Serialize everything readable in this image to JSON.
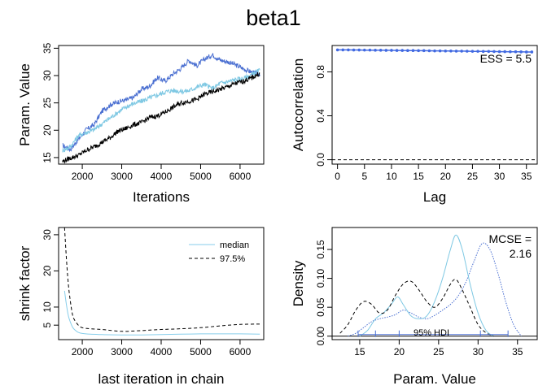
{
  "title": "beta1",
  "colors": {
    "chain1": "#4a6fd1",
    "chain2": "#7ec8e3",
    "chain3": "#000000",
    "median": "#87ceeb",
    "q975": "#000000",
    "acf": "#4169e1"
  },
  "chart_data": [
    {
      "id": "trace",
      "type": "line",
      "xlabel": "Iterations",
      "ylabel": "Param. Value",
      "xlim": [
        1400,
        6600
      ],
      "ylim": [
        13.8,
        35.5
      ],
      "xticks": [
        2000,
        3000,
        4000,
        5000,
        6000
      ],
      "yticks": [
        15,
        20,
        25,
        30,
        35
      ],
      "series": [
        {
          "x": [
            1500,
            1700,
            1900,
            2100,
            2300,
            2500,
            2700,
            2900,
            3100,
            3300,
            3500,
            3700,
            3900,
            4100,
            4300,
            4500,
            4700,
            4900,
            5100,
            5300,
            5500,
            5700,
            5900,
            6100,
            6300,
            6500
          ],
          "values": [
            17.2,
            16.5,
            18.3,
            20.1,
            21.0,
            23.5,
            24.6,
            25.2,
            25.5,
            26.0,
            27.5,
            28.0,
            29.6,
            29.0,
            30.3,
            31.3,
            32.8,
            31.8,
            33.0,
            33.8,
            32.8,
            32.5,
            31.9,
            31.2,
            30.6,
            30.2
          ]
        },
        {
          "x": [
            1500,
            1700,
            1900,
            2100,
            2300,
            2500,
            2700,
            2900,
            3100,
            3300,
            3500,
            3700,
            3900,
            4100,
            4300,
            4500,
            4700,
            4900,
            5100,
            5300,
            5500,
            5700,
            5900,
            6100,
            6300,
            6500
          ],
          "values": [
            16.3,
            17.0,
            19.0,
            19.6,
            20.1,
            21.2,
            22.2,
            23.3,
            24.2,
            24.9,
            25.3,
            25.9,
            26.4,
            27.0,
            27.3,
            27.1,
            27.2,
            27.9,
            28.4,
            27.6,
            28.6,
            28.9,
            29.3,
            29.5,
            30.2,
            31.0
          ]
        },
        {
          "x": [
            1500,
            1700,
            1900,
            2100,
            2300,
            2500,
            2700,
            2900,
            3100,
            3300,
            3500,
            3700,
            3900,
            4100,
            4300,
            4500,
            4700,
            4900,
            5100,
            5300,
            5500,
            5700,
            5900,
            6100,
            6300,
            6500
          ],
          "values": [
            14.3,
            14.9,
            15.4,
            16.3,
            17.0,
            17.8,
            18.6,
            19.8,
            20.3,
            21.0,
            21.4,
            22.3,
            22.6,
            23.3,
            24.2,
            25.0,
            25.3,
            25.6,
            26.6,
            27.0,
            27.5,
            28.0,
            28.6,
            29.0,
            29.6,
            30.4
          ]
        }
      ]
    },
    {
      "id": "autocorrelation",
      "type": "line",
      "xlabel": "Lag",
      "ylabel": "Autocorrelation",
      "xlim": [
        -1,
        37
      ],
      "ylim": [
        -0.04,
        1.04
      ],
      "xticks": [
        0,
        5,
        10,
        15,
        20,
        25,
        30,
        35
      ],
      "yticks": [
        0.0,
        0.4,
        0.8
      ],
      "ess_label": "ESS = 5.5",
      "x": [
        0,
        1,
        2,
        3,
        4,
        5,
        6,
        7,
        8,
        9,
        10,
        11,
        12,
        13,
        14,
        15,
        16,
        17,
        18,
        19,
        20,
        21,
        22,
        23,
        24,
        25,
        26,
        27,
        28,
        29,
        30,
        31,
        32,
        33,
        34,
        35,
        36
      ],
      "values": [
        1.0,
        1.0,
        1.0,
        0.999,
        0.999,
        0.998,
        0.998,
        0.997,
        0.997,
        0.996,
        0.996,
        0.995,
        0.995,
        0.994,
        0.994,
        0.993,
        0.993,
        0.992,
        0.991,
        0.991,
        0.99,
        0.99,
        0.989,
        0.989,
        0.988,
        0.987,
        0.987,
        0.986,
        0.986,
        0.985,
        0.984,
        0.984,
        0.983,
        0.983,
        0.982,
        0.981,
        0.981
      ],
      "zero_line": 0
    },
    {
      "id": "shrink",
      "type": "line",
      "xlabel": "last iteration in chain",
      "ylabel": "shrink factor",
      "xlim": [
        1400,
        6600
      ],
      "ylim": [
        1,
        32
      ],
      "xticks": [
        2000,
        3000,
        4000,
        5000,
        6000
      ],
      "yticks": [
        5,
        10,
        20,
        30
      ],
      "series": [
        {
          "name": "median",
          "x": [
            1550,
            1600,
            1650,
            1700,
            1750,
            1800,
            1900,
            2000,
            2200,
            2500,
            3000,
            3500,
            4000,
            4500,
            5000,
            5500,
            6000,
            6500
          ],
          "values": [
            14.5,
            10.5,
            7.5,
            5.8,
            4.5,
            3.8,
            3.0,
            2.7,
            2.5,
            2.4,
            2.3,
            2.3,
            2.4,
            2.5,
            2.6,
            2.6,
            2.6,
            2.5
          ]
        },
        {
          "name": "97.5%",
          "x": [
            1550,
            1600,
            1650,
            1700,
            1750,
            1800,
            1900,
            2000,
            2200,
            2500,
            3000,
            3500,
            4000,
            4500,
            5000,
            5500,
            6000,
            6500
          ],
          "values": [
            32,
            23.0,
            16.0,
            11.5,
            8.0,
            6.5,
            5.0,
            4.3,
            4.0,
            3.8,
            3.3,
            3.5,
            3.8,
            4.0,
            4.3,
            4.8,
            5.2,
            5.3
          ]
        }
      ]
    },
    {
      "id": "density",
      "type": "line",
      "xlabel": "Param. Value",
      "ylabel": "Density",
      "xlim": [
        11.5,
        37.5
      ],
      "ylim": [
        -0.006,
        0.188
      ],
      "xticks": [
        15,
        20,
        25,
        30,
        35
      ],
      "yticks": [
        0.0,
        0.05,
        0.1,
        0.15
      ],
      "mcse_label": "MCSE =",
      "mcse_value": "2.16",
      "hdi_label": "95% HDI",
      "hdi": [
        14.8,
        33.8
      ],
      "series": [
        {
          "x": [
            13.5,
            14.5,
            15.5,
            16.5,
            17.5,
            18.5,
            19.5,
            20.5,
            21.5,
            22.5,
            23.5,
            24.5,
            25.5,
            26.5,
            27.5,
            28.5,
            29.5,
            30.5,
            31.5,
            32.5,
            33.5,
            34.5,
            35.5
          ],
          "values": [
            0.0,
            0.005,
            0.015,
            0.025,
            0.03,
            0.033,
            0.037,
            0.045,
            0.04,
            0.033,
            0.03,
            0.036,
            0.045,
            0.055,
            0.07,
            0.095,
            0.13,
            0.16,
            0.15,
            0.11,
            0.06,
            0.02,
            0.0
          ]
        },
        {
          "x": [
            15,
            16,
            17,
            18,
            19,
            19.8,
            20.5,
            21.5,
            22.5,
            23.5,
            24.5,
            25.5,
            26.5,
            27.2,
            28,
            29,
            30,
            31,
            32
          ],
          "values": [
            0.0,
            0.01,
            0.03,
            0.04,
            0.055,
            0.068,
            0.055,
            0.035,
            0.03,
            0.035,
            0.06,
            0.1,
            0.15,
            0.175,
            0.15,
            0.09,
            0.04,
            0.01,
            0.0
          ]
        },
        {
          "x": [
            12.5,
            13.5,
            14.5,
            15.5,
            16.5,
            17.5,
            18.5,
            19.5,
            20.5,
            21.5,
            22.5,
            23.5,
            24.5,
            25.5,
            26.5,
            27.2,
            28,
            29,
            30,
            31,
            32
          ],
          "values": [
            0.005,
            0.02,
            0.045,
            0.06,
            0.055,
            0.04,
            0.045,
            0.07,
            0.09,
            0.095,
            0.08,
            0.06,
            0.05,
            0.065,
            0.09,
            0.098,
            0.08,
            0.05,
            0.02,
            0.006,
            0.0
          ]
        }
      ]
    }
  ]
}
